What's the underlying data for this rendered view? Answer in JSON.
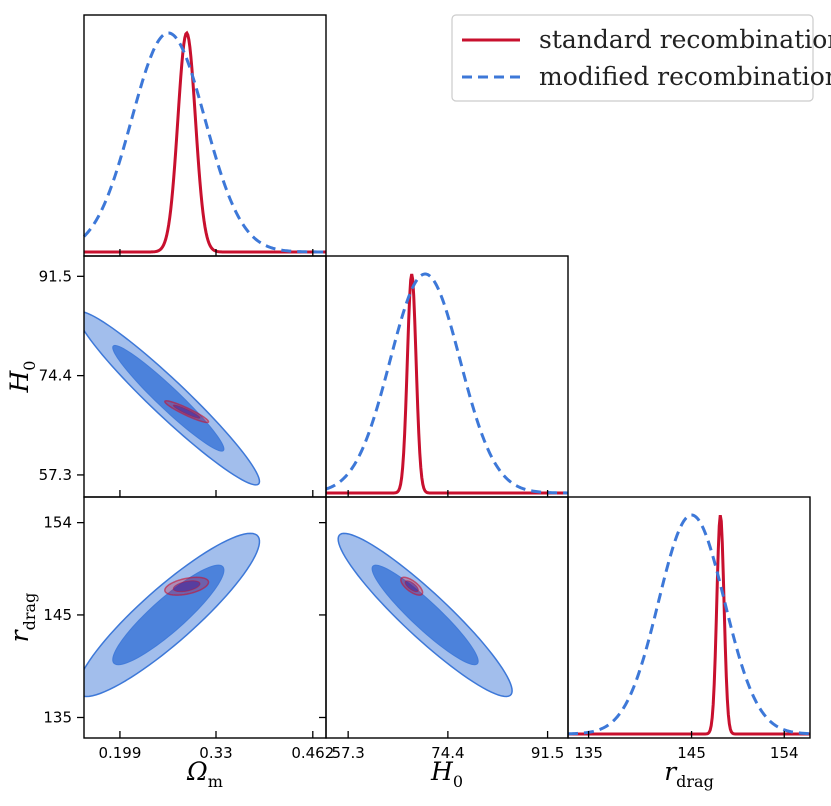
{
  "chart_data": {
    "type": "corner",
    "grid": false,
    "legend_placement": "top-right",
    "parameters": [
      {
        "id": "Om",
        "label": "Ω",
        "sub": "m",
        "range": [
          0.15,
          0.48
        ],
        "ticks": [
          0.199,
          0.33,
          0.462
        ],
        "tick_labels": [
          "0.199",
          "0.33",
          "0.462"
        ]
      },
      {
        "id": "H0",
        "label": "H",
        "sub": "0",
        "range": [
          53.5,
          95.0
        ],
        "ticks": [
          57.3,
          74.4,
          91.5
        ],
        "tick_labels": [
          "57.3",
          "74.4",
          "91.5"
        ]
      },
      {
        "id": "rd",
        "label": "r",
        "sub": "drag",
        "range": [
          133,
          156.5
        ],
        "ticks": [
          135,
          145,
          154
        ],
        "tick_labels": [
          "135",
          "145",
          "154"
        ]
      }
    ],
    "series": [
      {
        "name": "standard recombination",
        "color": "#c8102e",
        "dash": "solid",
        "mean": [
          0.29,
          68.2,
          147.8
        ],
        "sigma": [
          0.012,
          0.75,
          0.35
        ],
        "corr": {
          "Om_H0": -0.93,
          "Om_rd": 0.45,
          "H0_rd": -0.7
        }
      },
      {
        "name": "modified recombination",
        "color": "#3d78d8",
        "dash": "dashed",
        "mean": [
          0.265,
          70.5,
          145.0
        ],
        "sigma": [
          0.05,
          6.0,
          3.2
        ],
        "corr": {
          "Om_H0": -0.96,
          "Om_rd": 0.9,
          "H0_rd": -0.93
        }
      }
    ]
  }
}
